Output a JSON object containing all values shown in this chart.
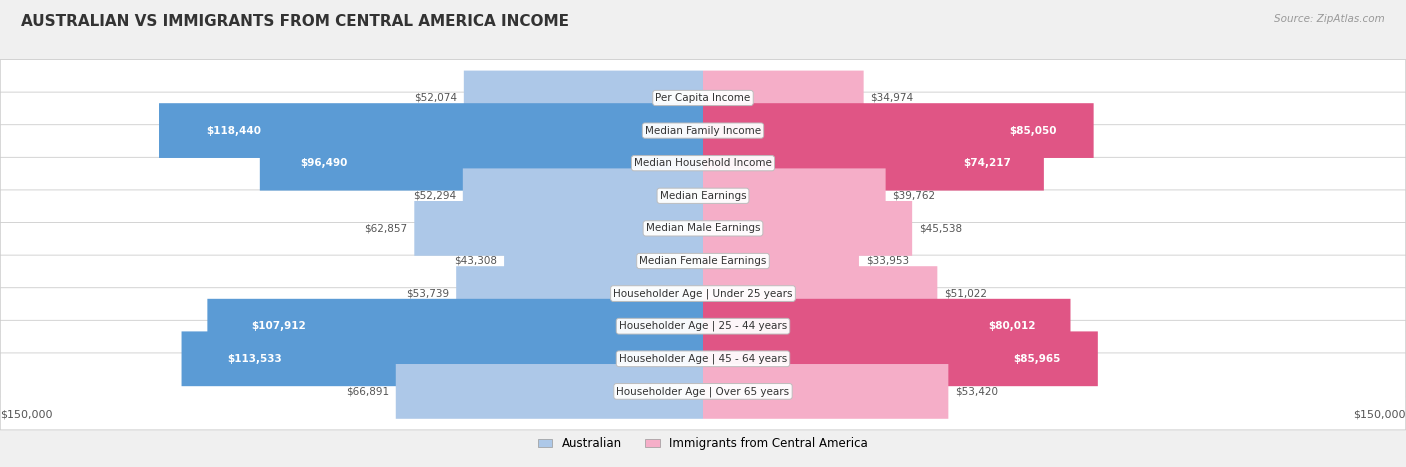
{
  "title": "AUSTRALIAN VS IMMIGRANTS FROM CENTRAL AMERICA INCOME",
  "source": "Source: ZipAtlas.com",
  "categories": [
    "Per Capita Income",
    "Median Family Income",
    "Median Household Income",
    "Median Earnings",
    "Median Male Earnings",
    "Median Female Earnings",
    "Householder Age | Under 25 years",
    "Householder Age | 25 - 44 years",
    "Householder Age | 45 - 64 years",
    "Householder Age | Over 65 years"
  ],
  "australian_values": [
    52074,
    118440,
    96490,
    52294,
    62857,
    43308,
    53739,
    107912,
    113533,
    66891
  ],
  "immigrant_values": [
    34974,
    85050,
    74217,
    39762,
    45538,
    33953,
    51022,
    80012,
    85965,
    53420
  ],
  "australian_labels": [
    "$52,074",
    "$118,440",
    "$96,490",
    "$52,294",
    "$62,857",
    "$43,308",
    "$53,739",
    "$107,912",
    "$113,533",
    "$66,891"
  ],
  "immigrant_labels": [
    "$34,974",
    "$85,050",
    "$74,217",
    "$39,762",
    "$45,538",
    "$33,953",
    "$51,022",
    "$80,012",
    "$85,965",
    "$53,420"
  ],
  "max_value": 150000,
  "australian_color_light": "#adc8e8",
  "australian_color_dark": "#5b9bd5",
  "immigrant_color_light": "#f5aec8",
  "immigrant_color_dark": "#e05585",
  "label_color_white": "#ffffff",
  "label_color_dark": "#555555",
  "background_color": "#f0f0f0",
  "row_background": "#ffffff",
  "row_border": "#cccccc",
  "title_fontsize": 11,
  "label_fontsize": 7.5,
  "category_fontsize": 7.5,
  "legend_fontsize": 8.5,
  "aus_white_threshold": 75000,
  "imm_white_threshold": 65000
}
